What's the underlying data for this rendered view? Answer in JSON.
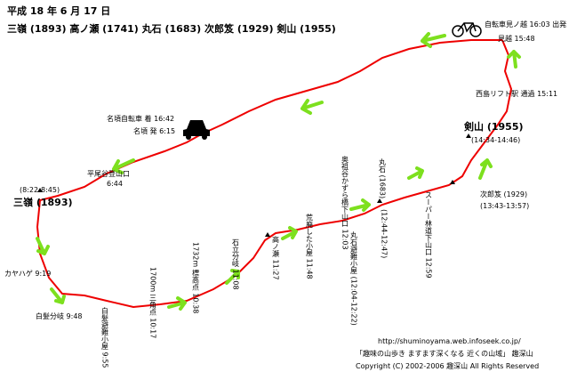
{
  "header": {
    "title": "平成 18 年 6 月 17 日",
    "summits": "三嶺 (1893) 高ノ瀬 (1741) 丸石 (1683) 次郎笈 (1929) 剣山 (1955)"
  },
  "labels": [
    "自転車見ノ越 16:03 出発",
    "見越 15:48",
    "西島リフト駅 通過 15:11",
    "剣山 (1955)",
    "(14:34-14:46)",
    "次郎笈 (1929)",
    "(13:43-13:57)",
    "名頃自転車 着 16:42",
    "名頃 発 6:15",
    "平尾谷登山口",
    "6:44",
    "(8:22-8:45)",
    "三嶺 (1893)",
    "カヤハゲ 9:19",
    "白髪分岐 9:48"
  ],
  "vertical_labels": [
    "白髪避難小屋 9:55",
    "1700m 三角点 10:17",
    "1732m 標高点 10:38",
    "石立分岐 11:08",
    "高ノ瀬 11:27",
    "荒廃した小屋 11:48",
    "奥祖谷かずら橋下山口 12:03",
    "丸石避難小屋 (12:04-12:22)",
    "丸石 (1683)",
    "(12:44-12:47)",
    "スーパー林道下山口 12:59"
  ],
  "footer": [
    "http://shuminoyama.web.infoseek.co.jp/",
    "「趣味の山歩き ますます深くなる 近くの山域」 趣深山",
    "Copyright (C) 2002-2006 趣深山 All Rights Reserved"
  ]
}
